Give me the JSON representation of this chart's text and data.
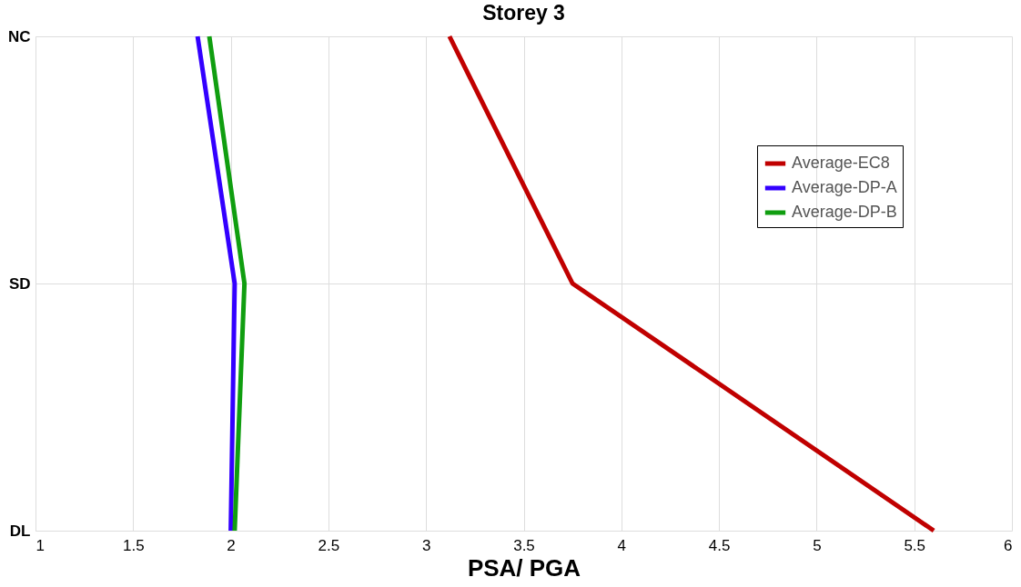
{
  "chart_data": {
    "type": "line",
    "orientation": "horizontal",
    "title": "Storey 3",
    "xlabel": "PSA/ PGA",
    "categories": [
      "NC",
      "SD",
      "DL"
    ],
    "xlim": [
      1,
      6
    ],
    "xticks": [
      1,
      1.5,
      2,
      2.5,
      3,
      3.5,
      4,
      4.5,
      5,
      5.5,
      6
    ],
    "grid": true,
    "legend": "top right",
    "marker": "none",
    "line_style": "solid",
    "series": [
      {
        "name": "Average-EC8",
        "color": "#c00000",
        "values": [
          3.12,
          3.75,
          5.6
        ]
      },
      {
        "name": "Average-DP-A",
        "color": "#3300ff",
        "values": [
          1.83,
          2.02,
          2.0
        ]
      },
      {
        "name": "Average-DP-B",
        "color": "#109e10",
        "values": [
          1.89,
          2.07,
          2.02
        ]
      }
    ]
  }
}
